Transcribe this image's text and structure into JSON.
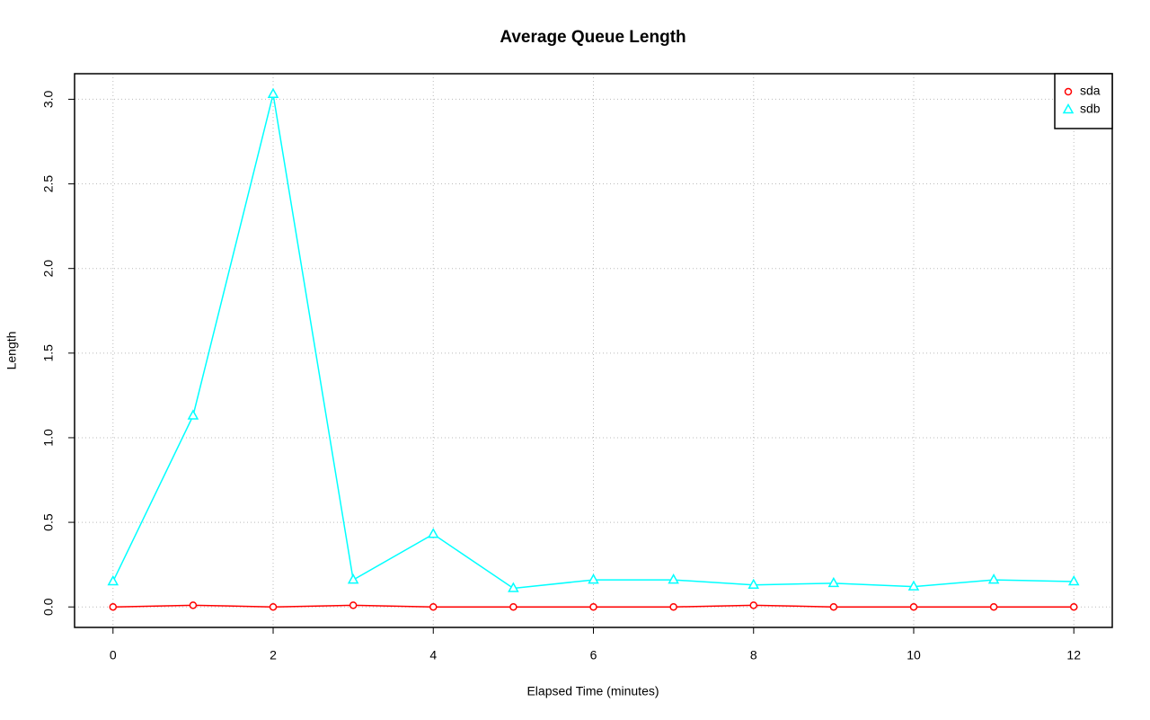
{
  "chart_data": {
    "type": "line",
    "title": "Average Queue Length",
    "x_label": "Elapsed Time (minutes)",
    "y_label": "Length",
    "x": [
      0,
      1,
      2,
      3,
      4,
      5,
      6,
      7,
      8,
      9,
      10,
      11,
      12
    ],
    "series": [
      {
        "name": "sda",
        "color": "#ff0000",
        "marker": "circle",
        "values": [
          0,
          0.01,
          0,
          0.01,
          0,
          0,
          0,
          0,
          0.01,
          0,
          0,
          0,
          0
        ]
      },
      {
        "name": "sdb",
        "color": "#00ffff",
        "marker": "triangle",
        "values": [
          0.15,
          1.13,
          3.03,
          0.16,
          0.43,
          0.11,
          0.16,
          0.16,
          0.13,
          0.14,
          0.12,
          0.16,
          0.15
        ]
      }
    ],
    "xlim": [
      -0.48,
      12.48
    ],
    "xticks": [
      0,
      2,
      4,
      6,
      8,
      10,
      12
    ],
    "ylim": [
      -0.121,
      3.151
    ],
    "yticks": [
      {
        "value": 0,
        "label": "0.0"
      },
      0.5,
      {
        "value": 1,
        "label": "1.0"
      },
      1.5,
      {
        "value": 2,
        "label": "2.0"
      },
      2.5,
      {
        "value": 3,
        "label": "3.0"
      }
    ],
    "grid": true,
    "legend": "top-right"
  }
}
